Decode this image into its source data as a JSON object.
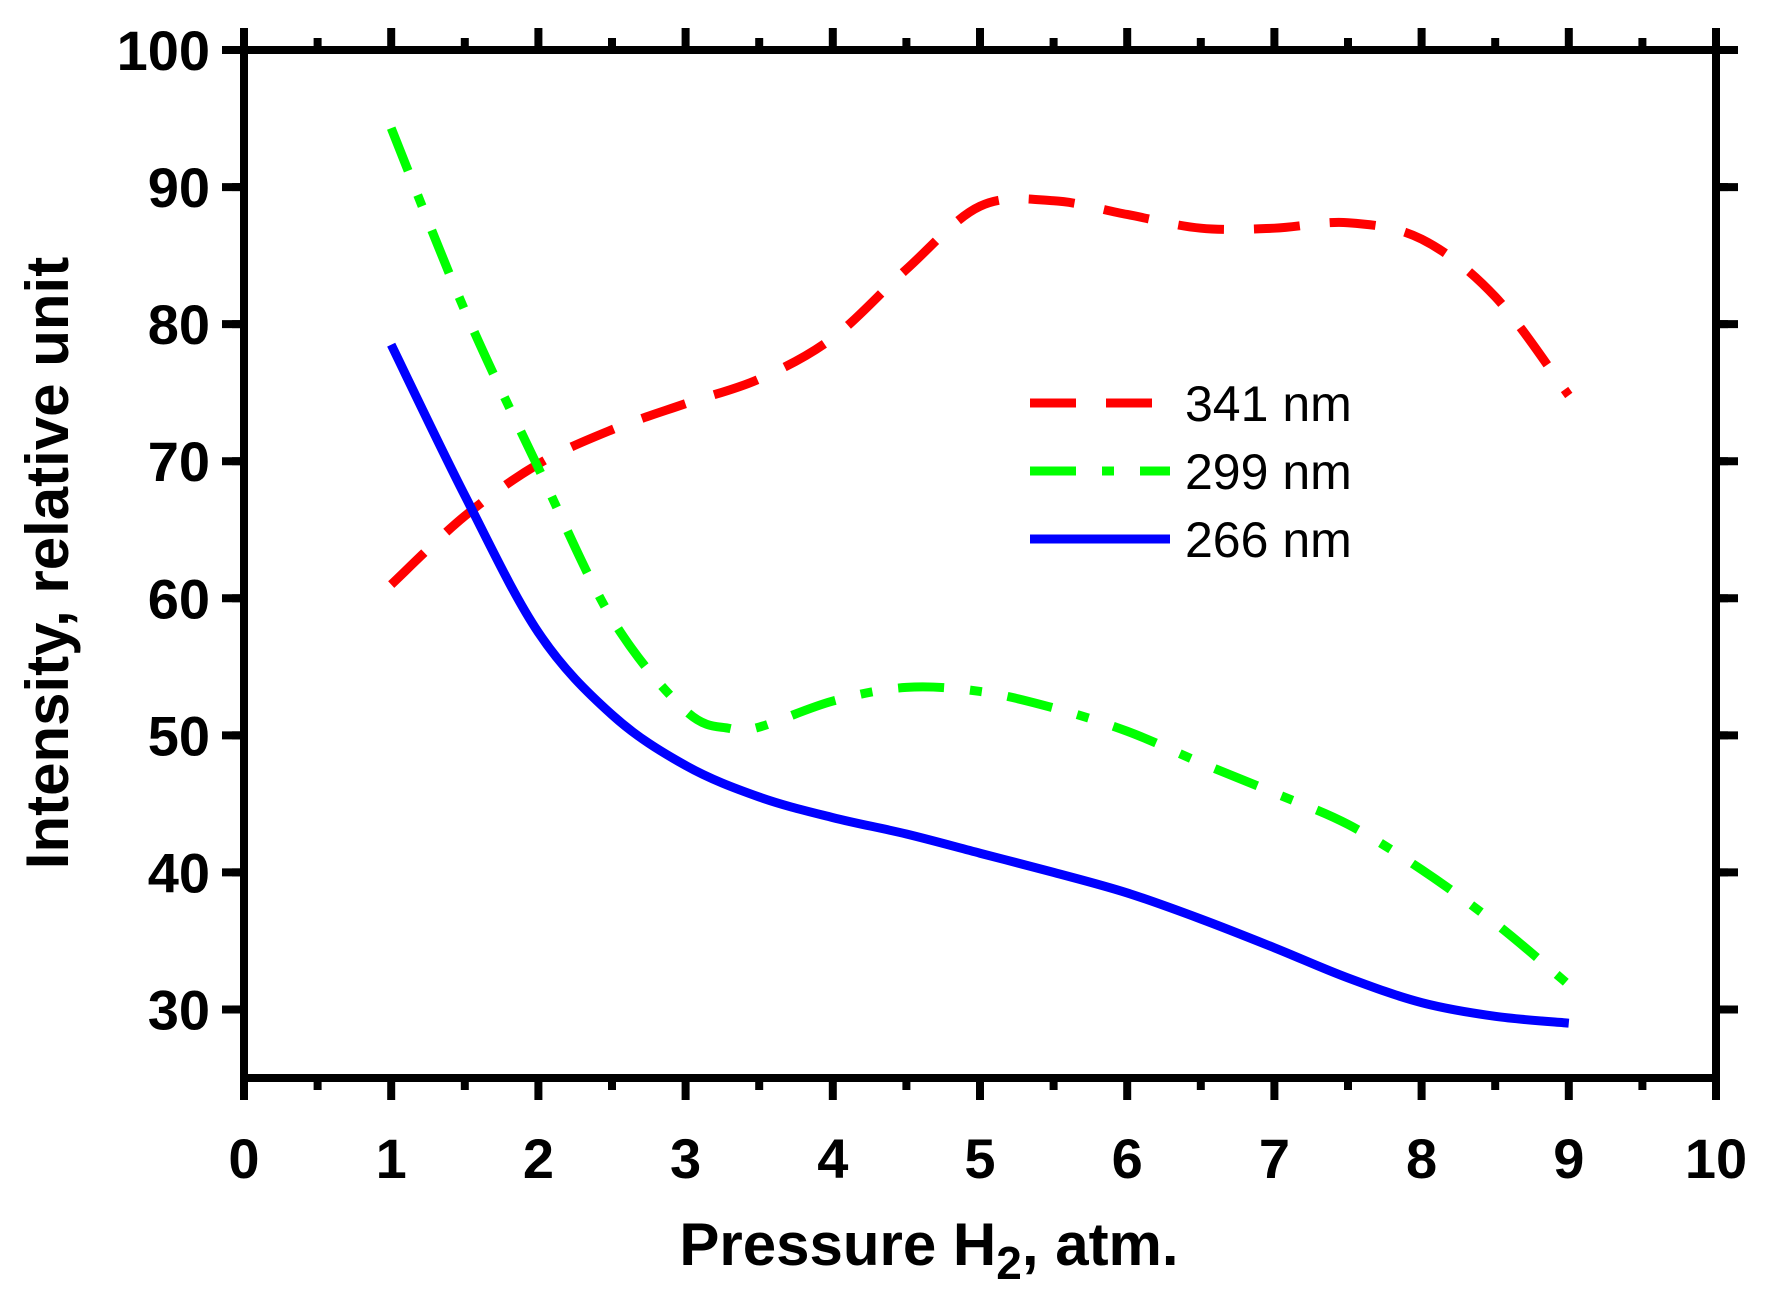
{
  "chart_data": {
    "type": "line",
    "title": "",
    "xlabel": "Pressure H",
    "xlabel_subscript": "2",
    "xlabel_suffix": ", atm.",
    "ylabel": "Intensity, relative unit",
    "xlim": [
      0,
      10
    ],
    "ylim": [
      25,
      100
    ],
    "xticks": [
      0,
      1,
      2,
      3,
      4,
      5,
      6,
      7,
      8,
      9,
      10
    ],
    "yticks": [
      30,
      40,
      50,
      60,
      70,
      80,
      90,
      100
    ],
    "grid": false,
    "legend_position": "right-middle",
    "series": [
      {
        "name": "341 nm",
        "color": "#ff0000",
        "style": "dashed",
        "x": [
          1.0,
          1.5,
          2.0,
          2.5,
          3.0,
          3.5,
          4.0,
          4.5,
          5.0,
          5.5,
          6.0,
          6.5,
          7.0,
          7.5,
          8.0,
          8.5,
          9.0
        ],
        "y": [
          61.0,
          66.0,
          69.8,
          72.3,
          74.2,
          76.0,
          79.0,
          84.0,
          88.6,
          89.0,
          88.0,
          87.0,
          87.0,
          87.4,
          86.2,
          82.0,
          74.8
        ]
      },
      {
        "name": "299 nm",
        "color": "#00ff00",
        "style": "dashdot",
        "x": [
          1.0,
          1.5,
          2.0,
          2.5,
          3.0,
          3.3,
          3.5,
          4.0,
          4.5,
          5.0,
          5.5,
          6.0,
          6.5,
          7.0,
          7.5,
          8.0,
          8.5,
          9.0
        ],
        "y": [
          94.3,
          81.0,
          69.5,
          58.5,
          51.8,
          50.5,
          50.6,
          52.5,
          53.5,
          53.2,
          52.0,
          50.3,
          48.0,
          45.8,
          43.5,
          40.2,
          36.3,
          31.8
        ]
      },
      {
        "name": "266 nm",
        "color": "#0000ff",
        "style": "solid",
        "x": [
          1.0,
          1.5,
          2.0,
          2.5,
          3.0,
          3.5,
          4.0,
          4.5,
          5.0,
          5.5,
          6.0,
          6.5,
          7.0,
          7.5,
          8.0,
          8.5,
          9.0
        ],
        "y": [
          78.5,
          67.5,
          57.5,
          51.5,
          47.8,
          45.5,
          44.0,
          42.8,
          41.4,
          40.0,
          38.5,
          36.6,
          34.5,
          32.3,
          30.5,
          29.5,
          29.0
        ]
      }
    ]
  }
}
